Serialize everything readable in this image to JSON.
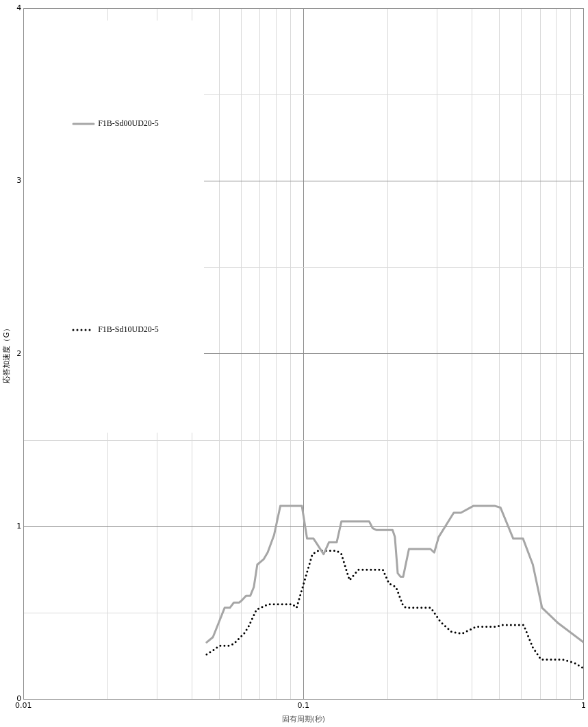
{
  "chart_data": {
    "type": "line",
    "xlabel": "固有周期(秒)",
    "ylabel": "応答加速度（G）",
    "log": "x",
    "grid": true,
    "legend": "top left",
    "marker": "none",
    "xlim": [
      0.01,
      1
    ],
    "xticks": [
      0.01,
      {
        "value": 0.02,
        "label": null
      },
      {
        "value": 0.03,
        "label": null
      },
      {
        "value": 0.04,
        "label": null
      },
      {
        "value": 0.05,
        "label": null
      },
      {
        "value": 0.06,
        "label": null
      },
      {
        "value": 0.07,
        "label": null
      },
      {
        "value": 0.08,
        "label": null
      },
      {
        "value": 0.09,
        "label": null
      },
      0.1,
      {
        "value": 0.2,
        "label": null
      },
      {
        "value": 0.3,
        "label": null
      },
      {
        "value": 0.4,
        "label": null
      },
      {
        "value": 0.5,
        "label": null
      },
      {
        "value": 0.6,
        "label": null
      },
      {
        "value": 0.7,
        "label": null
      },
      {
        "value": 0.8,
        "label": null
      },
      {
        "value": 0.9,
        "label": null
      },
      1
    ],
    "ylim": [
      0,
      4
    ],
    "yticks": [
      0,
      {
        "value": 0.5,
        "label": null
      },
      1,
      {
        "value": 1.5,
        "label": null
      },
      2,
      {
        "value": 2.5,
        "label": null
      },
      3,
      {
        "value": 3.5,
        "label": null
      },
      4
    ],
    "series": [
      {
        "name": "F1B-Sd00UD20-5",
        "color": "#a6a6a6",
        "line_style": "solid",
        "x": [
          0.0451,
          0.0475,
          0.05,
          0.0523,
          0.0546,
          0.0564,
          0.0589,
          0.06,
          0.0624,
          0.0646,
          0.0665,
          0.0684,
          0.072,
          0.0745,
          0.0785,
          0.0827,
          0.0987,
          0.103,
          0.1086,
          0.1117,
          0.118,
          0.1234,
          0.1315,
          0.1366,
          0.1716,
          0.1767,
          0.182,
          0.208,
          0.212,
          0.217,
          0.222,
          0.227,
          0.238,
          0.284,
          0.293,
          0.304,
          0.344,
          0.365,
          0.405,
          0.481,
          0.505,
          0.561,
          0.608,
          0.659,
          0.711,
          0.813,
          1.0
        ],
        "values": [
          0.33,
          0.36,
          0.45,
          0.53,
          0.53,
          0.56,
          0.56,
          0.57,
          0.6,
          0.6,
          0.65,
          0.78,
          0.81,
          0.85,
          0.95,
          1.12,
          1.12,
          0.93,
          0.93,
          0.9,
          0.84,
          0.91,
          0.91,
          1.03,
          1.03,
          0.99,
          0.98,
          0.98,
          0.94,
          0.73,
          0.71,
          0.71,
          0.87,
          0.87,
          0.85,
          0.94,
          1.08,
          1.08,
          1.12,
          1.12,
          1.11,
          0.93,
          0.93,
          0.78,
          0.53,
          0.44,
          0.33
        ]
      },
      {
        "name": "F1B-Sd10UD20-5",
        "color": "#000000",
        "line_style": "dotted",
        "x": [
          0.0451,
          0.0482,
          0.05,
          0.0541,
          0.0562,
          0.0613,
          0.0636,
          0.068,
          0.0748,
          0.0914,
          0.0945,
          0.1006,
          0.1076,
          0.1128,
          0.1315,
          0.1366,
          0.146,
          0.157,
          0.192,
          0.202,
          0.214,
          0.227,
          0.233,
          0.285,
          0.308,
          0.338,
          0.368,
          0.413,
          0.486,
          0.515,
          0.611,
          0.659,
          0.705,
          0.845,
          0.93,
          1.0
        ],
        "values": [
          0.26,
          0.29,
          0.31,
          0.31,
          0.32,
          0.38,
          0.42,
          0.52,
          0.55,
          0.55,
          0.53,
          0.68,
          0.84,
          0.86,
          0.86,
          0.84,
          0.69,
          0.75,
          0.75,
          0.67,
          0.65,
          0.54,
          0.53,
          0.53,
          0.45,
          0.39,
          0.38,
          0.42,
          0.42,
          0.43,
          0.43,
          0.3,
          0.23,
          0.23,
          0.21,
          0.18
        ]
      }
    ]
  }
}
